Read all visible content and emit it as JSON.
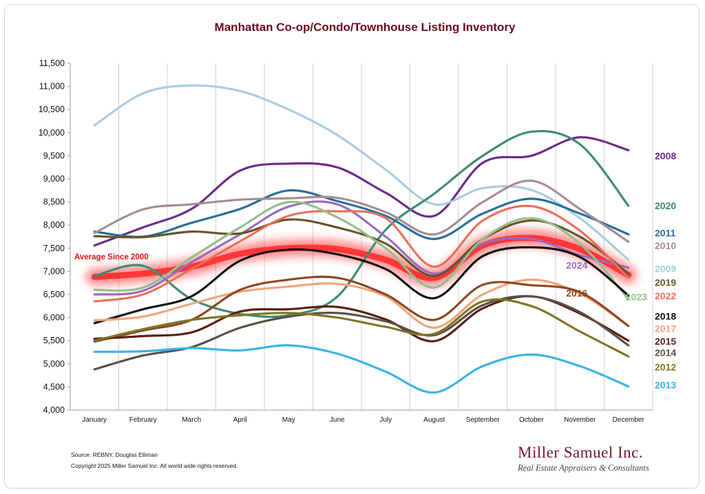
{
  "title": "Manhattan Co-op/Condo/Townhouse Listing Inventory",
  "source": "Source: REBNY, Douglas Elliman",
  "copyright": "Copyright 2025 Miller Samuel Inc.  All world wide rights reserved.",
  "logo": {
    "name": "Miller Samuel Inc.",
    "tagline": "Real Estate Appraisers & Consultants"
  },
  "average_label": "Average  Since 2000",
  "chart_data": {
    "type": "line",
    "categories": [
      "January",
      "February",
      "March",
      "April",
      "May",
      "June",
      "July",
      "August",
      "September",
      "October",
      "November",
      "December"
    ],
    "ylim": [
      4000,
      11500
    ],
    "yticks": [
      4000,
      4500,
      5000,
      5500,
      6000,
      6500,
      7000,
      7500,
      8000,
      8500,
      9000,
      9500,
      10000,
      10500,
      11000,
      11500
    ],
    "ytick_labels": [
      "4,000",
      "4,500",
      "5,000",
      "5,500",
      "6,000",
      "6,500",
      "7,000",
      "7,500",
      "8,000",
      "8,500",
      "9,000",
      "9,500",
      "10,000",
      "10,500",
      "11,000",
      "11,500"
    ],
    "grid": "vertical",
    "series": [
      {
        "name": "Average  Since 2000",
        "color": "#ff2a2a",
        "values": [
          6880,
          6950,
          7100,
          7380,
          7500,
          7480,
          7250,
          6860,
          7560,
          7720,
          7480,
          6920
        ]
      },
      {
        "name": "2008",
        "color": "#6a2c8c",
        "values": [
          7560,
          7950,
          8350,
          9180,
          9330,
          9250,
          8700,
          8200,
          9350,
          9500,
          9900,
          9620
        ]
      },
      {
        "name": "2009",
        "color": "#a9cbe0",
        "values": [
          10160,
          10850,
          11020,
          10900,
          10500,
          9950,
          9200,
          8450,
          8800,
          8760,
          8150,
          7250
        ]
      },
      {
        "name": "2020",
        "color": "#3e8b73",
        "values": [
          6900,
          7120,
          6400,
          6080,
          6050,
          6450,
          7900,
          8680,
          9500,
          10020,
          9750,
          8420
        ]
      },
      {
        "name": "2011",
        "color": "#2a6e9a",
        "values": [
          7860,
          7750,
          8050,
          8350,
          8750,
          8520,
          8200,
          7700,
          8250,
          8570,
          8250,
          7800
        ]
      },
      {
        "name": "2010",
        "color": "#a68c91",
        "values": [
          7830,
          8340,
          8450,
          8550,
          8580,
          8590,
          8280,
          7800,
          8500,
          8960,
          8350,
          7640
        ]
      },
      {
        "name": "2024",
        "color": "#9b6bbf",
        "values": [
          6500,
          6580,
          7200,
          7800,
          8400,
          8450,
          7750,
          6950,
          7600,
          7700,
          7350,
          7080
        ]
      },
      {
        "name": "2019",
        "color": "#665426",
        "values": [
          7760,
          7740,
          7860,
          7820,
          8120,
          7950,
          7600,
          6900,
          7700,
          8100,
          7750,
          6950
        ]
      },
      {
        "name": "2022",
        "color": "#ec6f59",
        "values": [
          6350,
          6500,
          7050,
          7650,
          8200,
          8300,
          8150,
          7100,
          8100,
          8410,
          7880,
          6860
        ]
      },
      {
        "name": "2023",
        "color": "#93bf8b",
        "values": [
          6600,
          6650,
          7300,
          7950,
          8500,
          8170,
          7500,
          6650,
          7700,
          8150,
          7600,
          6400
        ]
      },
      {
        "name": "2018",
        "color": "#111111",
        "values": [
          5880,
          6180,
          6460,
          7230,
          7470,
          7370,
          7050,
          6420,
          7330,
          7520,
          7310,
          6480
        ]
      },
      {
        "name": "2017",
        "color": "#f1a57e",
        "values": [
          5940,
          6020,
          6300,
          6560,
          6670,
          6730,
          6460,
          5780,
          6500,
          6820,
          6520,
          5820
        ]
      },
      {
        "name": "2016",
        "color": "#8e4720",
        "values": [
          5480,
          5720,
          5950,
          6600,
          6820,
          6860,
          6500,
          5950,
          6710,
          6700,
          6550,
          5820
        ]
      },
      {
        "name": "2015",
        "color": "#5a1f12",
        "values": [
          5540,
          5600,
          5680,
          6130,
          6180,
          6230,
          5960,
          5490,
          6200,
          6460,
          6090,
          5500
        ]
      },
      {
        "name": "2014",
        "color": "#5b5047",
        "values": [
          4880,
          5180,
          5360,
          5780,
          6020,
          6100,
          5920,
          5620,
          6270,
          6460,
          6120,
          5400
        ]
      },
      {
        "name": "2012",
        "color": "#807525",
        "values": [
          5500,
          5750,
          5950,
          6050,
          6100,
          6000,
          5800,
          5650,
          6350,
          6250,
          5700,
          5160
        ]
      },
      {
        "name": "2013",
        "color": "#3ab3e6",
        "values": [
          5260,
          5270,
          5340,
          5290,
          5400,
          5220,
          4830,
          4380,
          4950,
          5200,
          4950,
          4510
        ]
      }
    ],
    "legend_labels": [
      {
        "name": "2008",
        "value": 9500
      },
      {
        "name": "2020",
        "value": 8420
      },
      {
        "name": "2011",
        "value": 7830
      },
      {
        "name": "2010",
        "value": 7560
      },
      {
        "name": "2009",
        "value": 7060
      },
      {
        "name": "2019",
        "value": 6760
      },
      {
        "name": "2022",
        "value": 6470
      },
      {
        "name": "2018",
        "value": 6030
      },
      {
        "name": "2017",
        "value": 5760
      },
      {
        "name": "2015",
        "value": 5490
      },
      {
        "name": "2014",
        "value": 5240
      },
      {
        "name": "2012",
        "value": 4930
      },
      {
        "name": "2013",
        "value": 4540
      }
    ],
    "inline_labels": [
      {
        "name": "2024",
        "month": "November",
        "value": 7130
      },
      {
        "name": "2016",
        "month": "November",
        "value": 6530
      },
      {
        "name": "2023",
        "month": "December",
        "value": 6450
      }
    ]
  }
}
